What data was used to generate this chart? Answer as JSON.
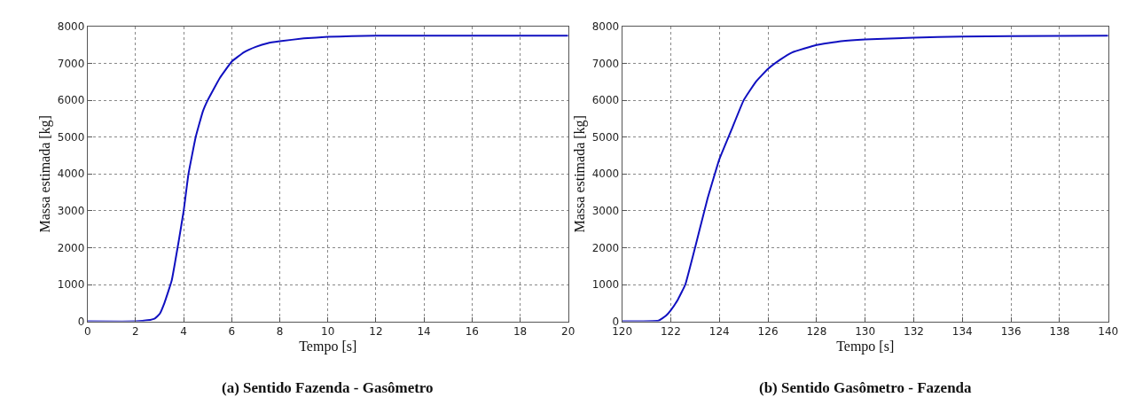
{
  "chart_data": [
    {
      "type": "line",
      "title": "(a) Sentido Fazenda - Gasômetro",
      "xlabel": "Tempo [s]",
      "ylabel": "Massa estimada [kg]",
      "xlim": [
        0,
        20
      ],
      "xticks": [
        0,
        2,
        4,
        6,
        8,
        10,
        12,
        14,
        16,
        18,
        20
      ],
      "ylim": [
        0,
        8000
      ],
      "yticks": [
        0,
        1000,
        2000,
        3000,
        4000,
        5000,
        6000,
        7000,
        8000
      ],
      "grid": true,
      "line_style": "solid",
      "series": [
        {
          "color": "#1010c0",
          "x": [
            0,
            2,
            2.5,
            2.8,
            3.0,
            3.2,
            3.5,
            3.8,
            4.0,
            4.2,
            4.5,
            4.8,
            5.0,
            5.5,
            6.0,
            6.5,
            7,
            7.5,
            8,
            9,
            10,
            11,
            12,
            14,
            20
          ],
          "values": [
            0,
            0,
            30,
            80,
            200,
            500,
            1100,
            2200,
            3000,
            4000,
            5000,
            5700,
            6000,
            6600,
            7050,
            7300,
            7450,
            7550,
            7600,
            7680,
            7720,
            7740,
            7750,
            7750,
            7750
          ]
        }
      ]
    },
    {
      "type": "line",
      "title": "(b) Sentido Gasômetro - Fazenda",
      "xlabel": "Tempo [s]",
      "ylabel": "Massa estimada [kg]",
      "xlim": [
        120,
        140
      ],
      "xticks": [
        120,
        122,
        124,
        126,
        128,
        130,
        132,
        134,
        136,
        138,
        140
      ],
      "ylim": [
        0,
        8000
      ],
      "yticks": [
        0,
        1000,
        2000,
        3000,
        4000,
        5000,
        6000,
        7000,
        8000
      ],
      "grid": true,
      "line_style": "solid",
      "series": [
        {
          "color": "#1010c0",
          "x": [
            120,
            121.5,
            121.8,
            122,
            122.3,
            122.6,
            123,
            123.5,
            124,
            124.5,
            125,
            125.5,
            126,
            126.5,
            127,
            128,
            129,
            130,
            132,
            134,
            136,
            140
          ],
          "values": [
            0,
            20,
            150,
            300,
            600,
            1000,
            2000,
            3300,
            4400,
            5200,
            6000,
            6500,
            6850,
            7100,
            7300,
            7500,
            7600,
            7650,
            7700,
            7730,
            7740,
            7750
          ]
        }
      ]
    }
  ]
}
